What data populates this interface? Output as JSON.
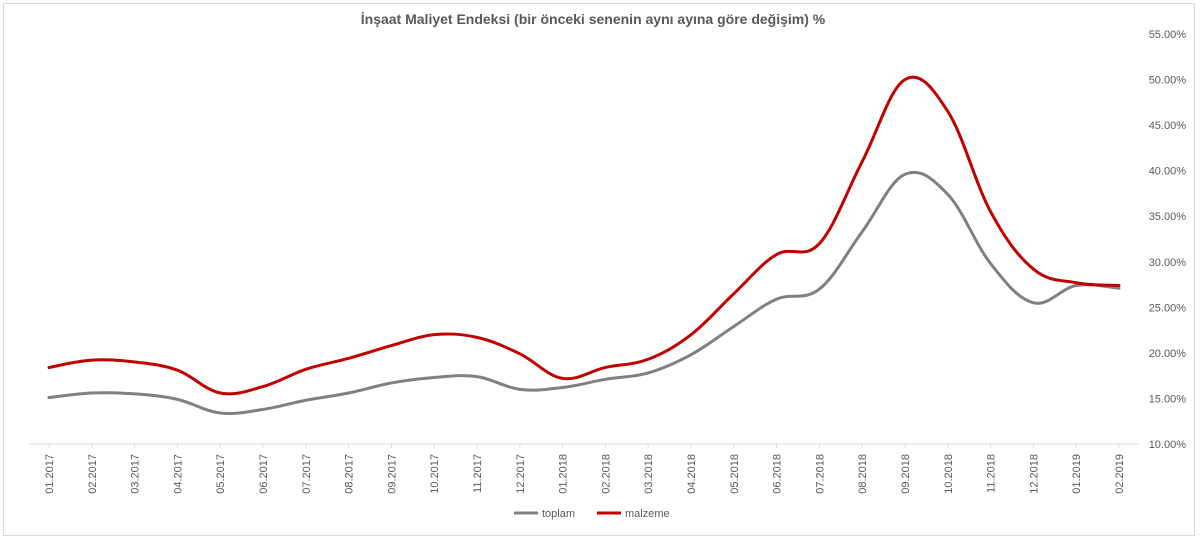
{
  "chart_data": {
    "type": "line",
    "title": "İnşaat Maliyet Endeksi (bir önceki senenin aynı ayına göre değişim) %",
    "xlabel": "",
    "ylabel": "",
    "ylim": [
      10,
      55
    ],
    "yticks": [
      10,
      15,
      20,
      25,
      30,
      35,
      40,
      45,
      50,
      55
    ],
    "ytick_labels": [
      "10.00%",
      "15.00%",
      "20.00%",
      "25.00%",
      "30.00%",
      "35.00%",
      "40.00%",
      "45.00%",
      "50.00%",
      "55.00%"
    ],
    "y_axis_position": "right",
    "grid": false,
    "legend_position": "bottom-center",
    "categories": [
      "01.2017",
      "02.2017",
      "03.2017",
      "04.2017",
      "05.2017",
      "06.2017",
      "07.2017",
      "08.2017",
      "09.2017",
      "10.2017",
      "11.2017",
      "12.2017",
      "01.2018",
      "02.2018",
      "03.2018",
      "04.2018",
      "05.2018",
      "06.2018",
      "07.2018",
      "08.2018",
      "09.2018",
      "10.2018",
      "11.2018",
      "12.2018",
      "01.2019",
      "02.2019"
    ],
    "series": [
      {
        "name": "toplam",
        "color": "#808080",
        "values": [
          15.1,
          15.6,
          15.5,
          14.9,
          13.4,
          13.8,
          14.8,
          15.6,
          16.7,
          17.3,
          17.4,
          16.0,
          16.2,
          17.1,
          17.8,
          19.8,
          22.9,
          25.9,
          27.0,
          33.3,
          39.6,
          37.4,
          29.8,
          25.5,
          27.4,
          27.1
        ]
      },
      {
        "name": "malzeme",
        "color": "#C00000",
        "values": [
          18.4,
          19.2,
          19.0,
          18.1,
          15.6,
          16.3,
          18.2,
          19.4,
          20.8,
          22.0,
          21.7,
          19.9,
          17.2,
          18.4,
          19.3,
          22.0,
          26.5,
          30.8,
          32.0,
          41.0,
          50.0,
          46.5,
          35.5,
          29.2,
          27.7,
          27.4
        ]
      }
    ]
  }
}
